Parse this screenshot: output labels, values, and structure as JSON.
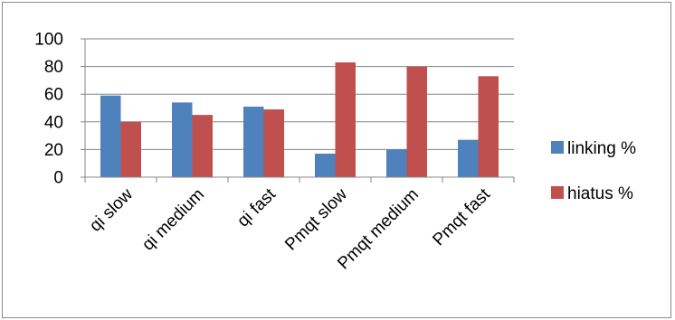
{
  "chart_data": {
    "type": "bar",
    "title": "",
    "xlabel": "",
    "ylabel": "",
    "categories": [
      "qi slow",
      "qi medium",
      "qi fast",
      "Pmqt slow",
      "Pmqt medium",
      "Pmqt fast"
    ],
    "series": [
      {
        "name": "linking %",
        "color": "#4f81bd",
        "values": [
          59,
          54,
          51,
          17,
          20,
          27
        ]
      },
      {
        "name": "hiatus %",
        "color": "#c0504d",
        "values": [
          40,
          45,
          49,
          83,
          80,
          73
        ]
      }
    ],
    "ylim": [
      0,
      100
    ],
    "yticks": [
      0,
      20,
      40,
      60,
      80,
      100
    ],
    "grid": true,
    "legend": "right"
  }
}
